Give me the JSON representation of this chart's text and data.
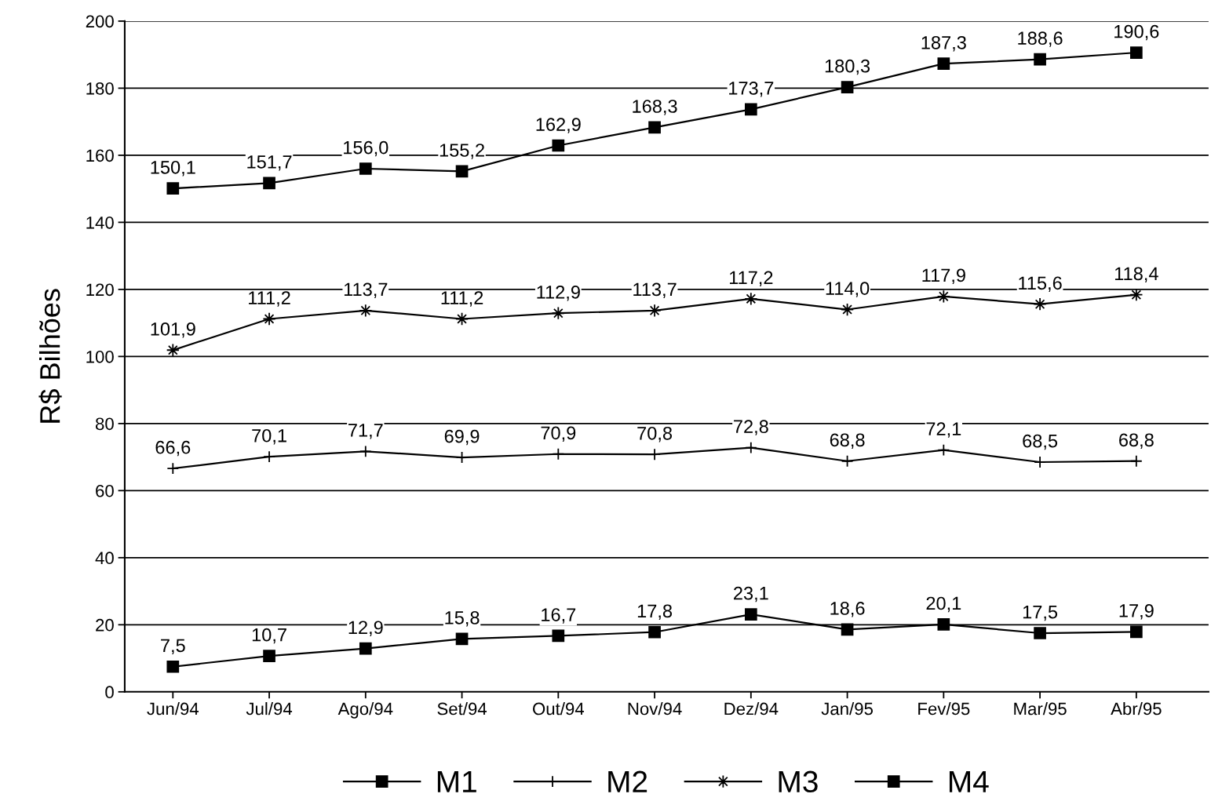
{
  "chart_data": {
    "type": "line",
    "ylabel": "R$ Bilhões",
    "categories": [
      "Jun/94",
      "Jul/94",
      "Ago/94",
      "Set/94",
      "Out/94",
      "Nov/94",
      "Dez/94",
      "Jan/95",
      "Fev/95",
      "Mar/95",
      "Abr/95"
    ],
    "series": [
      {
        "name": "M1",
        "color": "#000000",
        "marker": "square",
        "values": [
          7.5,
          10.7,
          12.9,
          15.8,
          16.7,
          17.8,
          23.1,
          18.6,
          20.1,
          17.5,
          17.9
        ],
        "value_labels": [
          "7,5",
          "10,7",
          "12,9",
          "15,8",
          "16,7",
          "17,8",
          "23,1",
          "18,6",
          "20,1",
          "17,5",
          "17,9"
        ]
      },
      {
        "name": "M2",
        "color": "#000000",
        "marker": "cross",
        "values": [
          66.6,
          70.1,
          71.7,
          69.9,
          70.9,
          70.8,
          72.8,
          68.8,
          72.1,
          68.5,
          68.8
        ],
        "value_labels": [
          "66,6",
          "70,1",
          "71,7",
          "69,9",
          "70,9",
          "70,8",
          "72,8",
          "68,8",
          "72,1",
          "68,5",
          "68,8"
        ]
      },
      {
        "name": "M3",
        "color": "#000000",
        "marker": "star",
        "values": [
          101.9,
          111.2,
          113.7,
          111.2,
          112.9,
          113.7,
          117.2,
          114.0,
          117.9,
          115.6,
          118.4
        ],
        "value_labels": [
          "101,9",
          "111,2",
          "113,7",
          "111,2",
          "112,9",
          "113,7",
          "117,2",
          "114,0",
          "117,9",
          "115,6",
          "118,4"
        ]
      },
      {
        "name": "M4",
        "color": "#000000",
        "marker": "square",
        "values": [
          150.1,
          151.7,
          156.0,
          155.2,
          162.9,
          168.3,
          173.7,
          180.3,
          187.3,
          188.6,
          190.6
        ],
        "value_labels": [
          "150,1",
          "151,7",
          "156,0",
          "155,2",
          "162,9",
          "168,3",
          "173,7",
          "180,3",
          "187,3",
          "188,6",
          "190,6"
        ]
      }
    ],
    "ylim": [
      0,
      200
    ],
    "yticks": [
      0,
      20,
      40,
      60,
      80,
      100,
      120,
      140,
      160,
      180,
      200
    ],
    "grid": "y",
    "legend": "bottom",
    "line_style": "solid"
  }
}
